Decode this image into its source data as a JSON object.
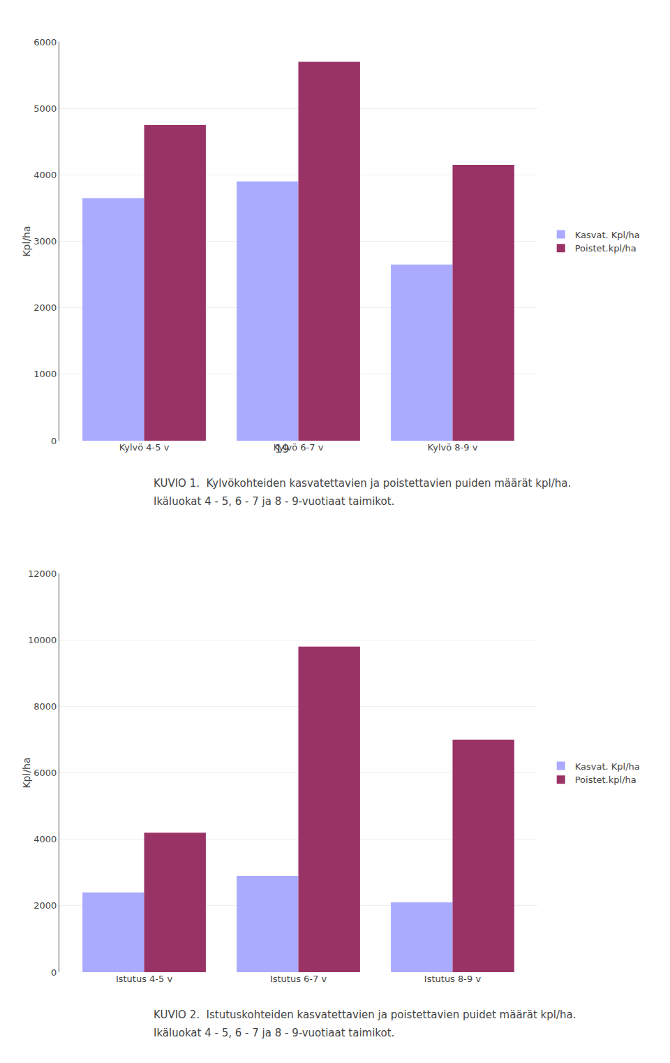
{
  "chart_data": [
    {
      "type": "bar",
      "title": "KUVIO 1.  Kylvökohteiden kasvatettavien ja poistettavien puiden määrät kpl/ha.",
      "subtitle": "Ikäluokat 4 - 5, 6 - 7 ja 8 - 9-vuotiaat taimikot.",
      "annotations": [
        "19"
      ],
      "ylabel": "Kpl/ha",
      "categories": [
        "Kylvö 4-5 v",
        "Kylvö 6-7 v",
        "Kylvö 8-9 v"
      ],
      "series": [
        {
          "name": "Kasvat. Kpl/ha",
          "color": "#aaaaff",
          "values": [
            3650,
            3900,
            2650
          ]
        },
        {
          "name": "Poistet.kpl/ha",
          "color": "#993366",
          "values": [
            4750,
            5700,
            4150
          ]
        }
      ],
      "ylim": [
        0,
        6000
      ],
      "yticks": [
        0,
        1000,
        2000,
        3000,
        4000,
        5000,
        6000
      ],
      "grid": true,
      "legend": "right"
    },
    {
      "type": "bar",
      "title": "KUVIO 2.  Istutuskohteiden kasvatettavien ja poistettavien puidet määrät kpl/ha.",
      "subtitle": "Ikäluokat 4 - 5, 6 - 7 ja 8 - 9-vuotiaat taimikot.",
      "ylabel": "Kpl/ha",
      "categories": [
        "Istutus 4-5 v",
        "Istutus 6-7 v",
        "Istutus 8-9 v"
      ],
      "series": [
        {
          "name": "Kasvat. Kpl/ha",
          "color": "#aaaaff",
          "values": [
            2400,
            2900,
            2100
          ]
        },
        {
          "name": "Poistet.kpl/ha",
          "color": "#993366",
          "values": [
            4200,
            9800,
            7000
          ]
        }
      ],
      "ylim": [
        0,
        12000
      ],
      "yticks": [
        0,
        2000,
        4000,
        6000,
        8000,
        10000,
        12000
      ],
      "grid": true,
      "legend": "right"
    }
  ]
}
